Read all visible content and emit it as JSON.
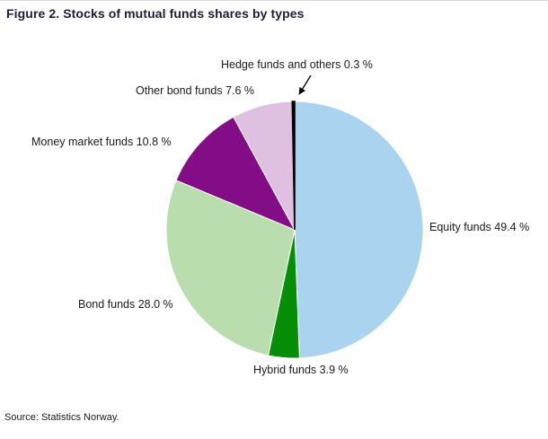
{
  "title": "Figure 2. Stocks of mutual funds shares by types",
  "source": "Source: Statistics Norway.",
  "chart_data": {
    "type": "pie",
    "title": "Figure 2. Stocks of mutual funds shares by types",
    "start_angle_deg": 0,
    "direction": "clockwise",
    "legend_position": "none",
    "slices": [
      {
        "label": "Equity funds",
        "value": 49.4,
        "color": "#a9d3ef",
        "display": "Equity funds 49.4 %"
      },
      {
        "label": "Hybrid funds",
        "value": 3.9,
        "color": "#068f06",
        "display": "Hybrid funds 3.9 %"
      },
      {
        "label": "Bond funds",
        "value": 28.0,
        "color": "#b9ddad",
        "display": "Bond funds 28.0 %"
      },
      {
        "label": "Money market funds",
        "value": 10.8,
        "color": "#820d87",
        "display": "Money market funds 10.8 %"
      },
      {
        "label": "Other bond funds",
        "value": 7.6,
        "color": "#dfc0e0",
        "display": "Other bond funds 7.6 %"
      },
      {
        "label": "Hedge funds and others",
        "value": 0.3,
        "color": "#000000",
        "display": "Hedge funds and others 0.3 %"
      }
    ],
    "annotation": {
      "text": "Hedge funds and others 0.3 %",
      "arrow": true
    }
  }
}
